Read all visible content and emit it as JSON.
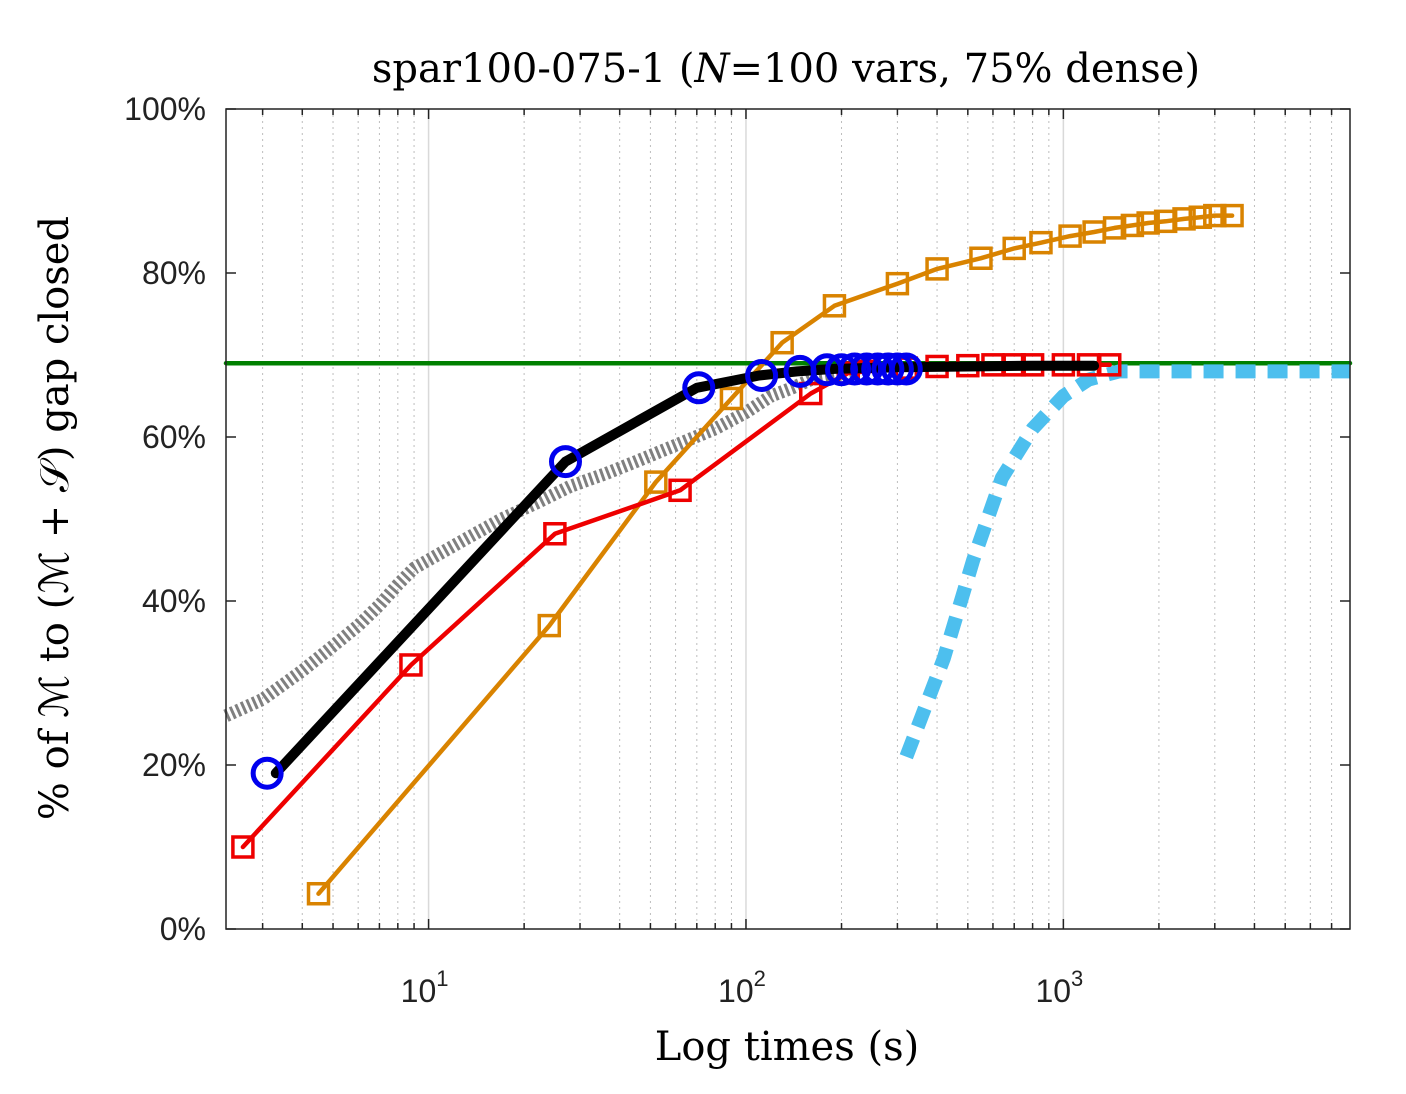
{
  "chart_data": {
    "type": "line",
    "title": "spar100-075-1 (N=100 vars, 75% dense)",
    "title_parts": {
      "before": "spar100-075-1 (",
      "italic": "N",
      "after": "=100 vars, 75% dense)"
    },
    "xlabel": "Log times (s)",
    "ylabel": "% of ℳ to (ℳ + 𝒮) gap closed",
    "x_scale": "log",
    "xlim": [
      2.3,
      8000
    ],
    "ylim": [
      0,
      100
    ],
    "x_ticks": [
      {
        "value": 10,
        "base": "10",
        "exp": "1"
      },
      {
        "value": 100,
        "base": "10",
        "exp": "2"
      },
      {
        "value": 1000,
        "base": "10",
        "exp": "3"
      }
    ],
    "y_ticks": [
      {
        "value": 0,
        "label": "0%"
      },
      {
        "value": 20,
        "label": "20%"
      },
      {
        "value": 40,
        "label": "40%"
      },
      {
        "value": 60,
        "label": "60%"
      },
      {
        "value": 80,
        "label": "80%"
      },
      {
        "value": 100,
        "label": "100%"
      }
    ],
    "grid": "x-only (major and minor)",
    "legend": "none",
    "series": [
      {
        "color": "#808080",
        "style": "thick dotted band",
        "marker": "none",
        "points": [
          [
            2.3,
            26
          ],
          [
            3,
            28
          ],
          [
            4,
            31.5
          ],
          [
            5,
            34.5
          ],
          [
            6,
            37
          ],
          [
            7,
            39.5
          ],
          [
            8,
            42
          ],
          [
            9,
            44
          ],
          [
            10,
            45
          ],
          [
            13,
            47.5
          ],
          [
            17,
            50
          ],
          [
            22,
            52
          ],
          [
            28,
            54
          ],
          [
            36,
            55.5
          ],
          [
            45,
            57
          ],
          [
            60,
            59
          ],
          [
            80,
            61
          ],
          [
            100,
            63
          ],
          [
            120,
            65
          ],
          [
            140,
            66
          ],
          [
            160,
            67
          ],
          [
            190,
            67.5
          ],
          [
            220,
            68
          ]
        ]
      },
      {
        "color": "#008000",
        "style": "solid",
        "marker": "none",
        "points": [
          [
            2.3,
            69
          ],
          [
            8000,
            69
          ]
        ]
      },
      {
        "color": "#4dbfee",
        "style": "thick dashed",
        "marker": "none",
        "points": [
          [
            320,
            21
          ],
          [
            420,
            33
          ],
          [
            520,
            45
          ],
          [
            640,
            55
          ],
          [
            800,
            61
          ],
          [
            1000,
            65
          ],
          [
            1200,
            67
          ],
          [
            1500,
            68
          ],
          [
            2000,
            68
          ],
          [
            8000,
            68
          ]
        ]
      },
      {
        "color": "#d98300",
        "style": "solid",
        "marker": "square",
        "points": [
          [
            4.5,
            4.3
          ],
          [
            24,
            37
          ],
          [
            52,
            54.5
          ],
          [
            90,
            64.7
          ],
          [
            130,
            71.5
          ],
          [
            190,
            76
          ],
          [
            300,
            78.7
          ],
          [
            400,
            80.5
          ],
          [
            550,
            81.8
          ],
          [
            700,
            83
          ],
          [
            850,
            83.7
          ],
          [
            1050,
            84.5
          ],
          [
            1250,
            85
          ],
          [
            1450,
            85.5
          ],
          [
            1650,
            85.8
          ],
          [
            1850,
            86.1
          ],
          [
            2100,
            86.3
          ],
          [
            2400,
            86.6
          ],
          [
            2700,
            86.8
          ],
          [
            3000,
            87
          ],
          [
            3400,
            87
          ]
        ]
      },
      {
        "color": "#ee0000",
        "style": "solid",
        "marker": "square",
        "points": [
          [
            2.6,
            10
          ],
          [
            8.8,
            32.2
          ],
          [
            25,
            48.2
          ],
          [
            62,
            53.5
          ],
          [
            160,
            65.3
          ],
          [
            210,
            67.8
          ],
          [
            240,
            68
          ],
          [
            320,
            68.4
          ],
          [
            400,
            68.6
          ],
          [
            500,
            68.7
          ],
          [
            600,
            68.8
          ],
          [
            700,
            68.8
          ],
          [
            800,
            68.8
          ],
          [
            1000,
            68.8
          ],
          [
            1200,
            68.8
          ],
          [
            1400,
            68.8
          ]
        ]
      },
      {
        "color": "#000000",
        "style": "thick solid",
        "marker": "none",
        "points": [
          [
            3.3,
            19
          ],
          [
            27,
            57
          ],
          [
            70,
            66
          ],
          [
            110,
            67.5
          ],
          [
            145,
            68
          ],
          [
            190,
            68.3
          ],
          [
            300,
            68.5
          ],
          [
            500,
            68.6
          ],
          [
            800,
            68.7
          ],
          [
            1250,
            68.7
          ]
        ]
      },
      {
        "color": "#0000ee",
        "style": "markers only",
        "marker": "circle",
        "points": [
          [
            3.1,
            19
          ],
          [
            27,
            57
          ],
          [
            71,
            66
          ],
          [
            112,
            67.5
          ],
          [
            148,
            68
          ],
          [
            180,
            68.2
          ],
          [
            200,
            68.2
          ],
          [
            220,
            68.3
          ],
          [
            240,
            68.3
          ],
          [
            260,
            68.3
          ],
          [
            280,
            68.3
          ],
          [
            300,
            68.3
          ],
          [
            320,
            68.3
          ]
        ]
      }
    ]
  }
}
